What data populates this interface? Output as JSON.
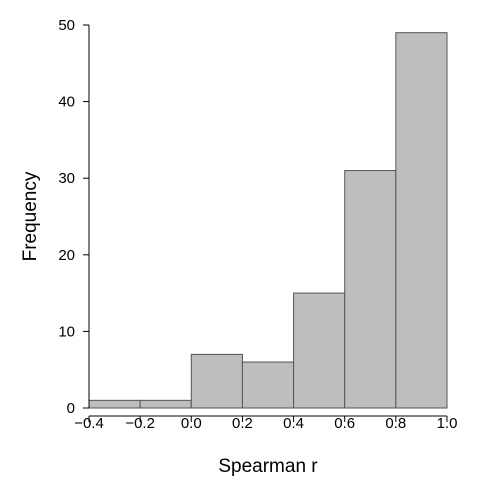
{
  "chart_data": {
    "type": "bar",
    "title": "",
    "xlabel": "Spearman r",
    "ylabel": "Frequency",
    "xlim": [
      -0.4,
      1.0
    ],
    "ylim": [
      0,
      50
    ],
    "x_ticks": [
      -0.4,
      -0.2,
      0.0,
      0.2,
      0.4,
      0.6,
      0.8,
      1.0
    ],
    "x_tick_labels": [
      "−0.4",
      "−0.2",
      "0.0",
      "0.2",
      "0.4",
      "0.6",
      "0.8",
      "1.0"
    ],
    "y_ticks": [
      0,
      10,
      20,
      30,
      40,
      50
    ],
    "y_tick_labels": [
      "0",
      "10",
      "20",
      "30",
      "40",
      "50"
    ],
    "bins": [
      {
        "start": -0.4,
        "end": -0.2,
        "count": 1
      },
      {
        "start": -0.2,
        "end": 0.0,
        "count": 1
      },
      {
        "start": 0.0,
        "end": 0.2,
        "count": 7
      },
      {
        "start": 0.2,
        "end": 0.4,
        "count": 6
      },
      {
        "start": 0.4,
        "end": 0.6,
        "count": 15
      },
      {
        "start": 0.6,
        "end": 0.8,
        "count": 31
      },
      {
        "start": 0.8,
        "end": 1.0,
        "count": 49
      }
    ],
    "bar_color": "#bebebe",
    "grid": false,
    "legend": "none"
  }
}
